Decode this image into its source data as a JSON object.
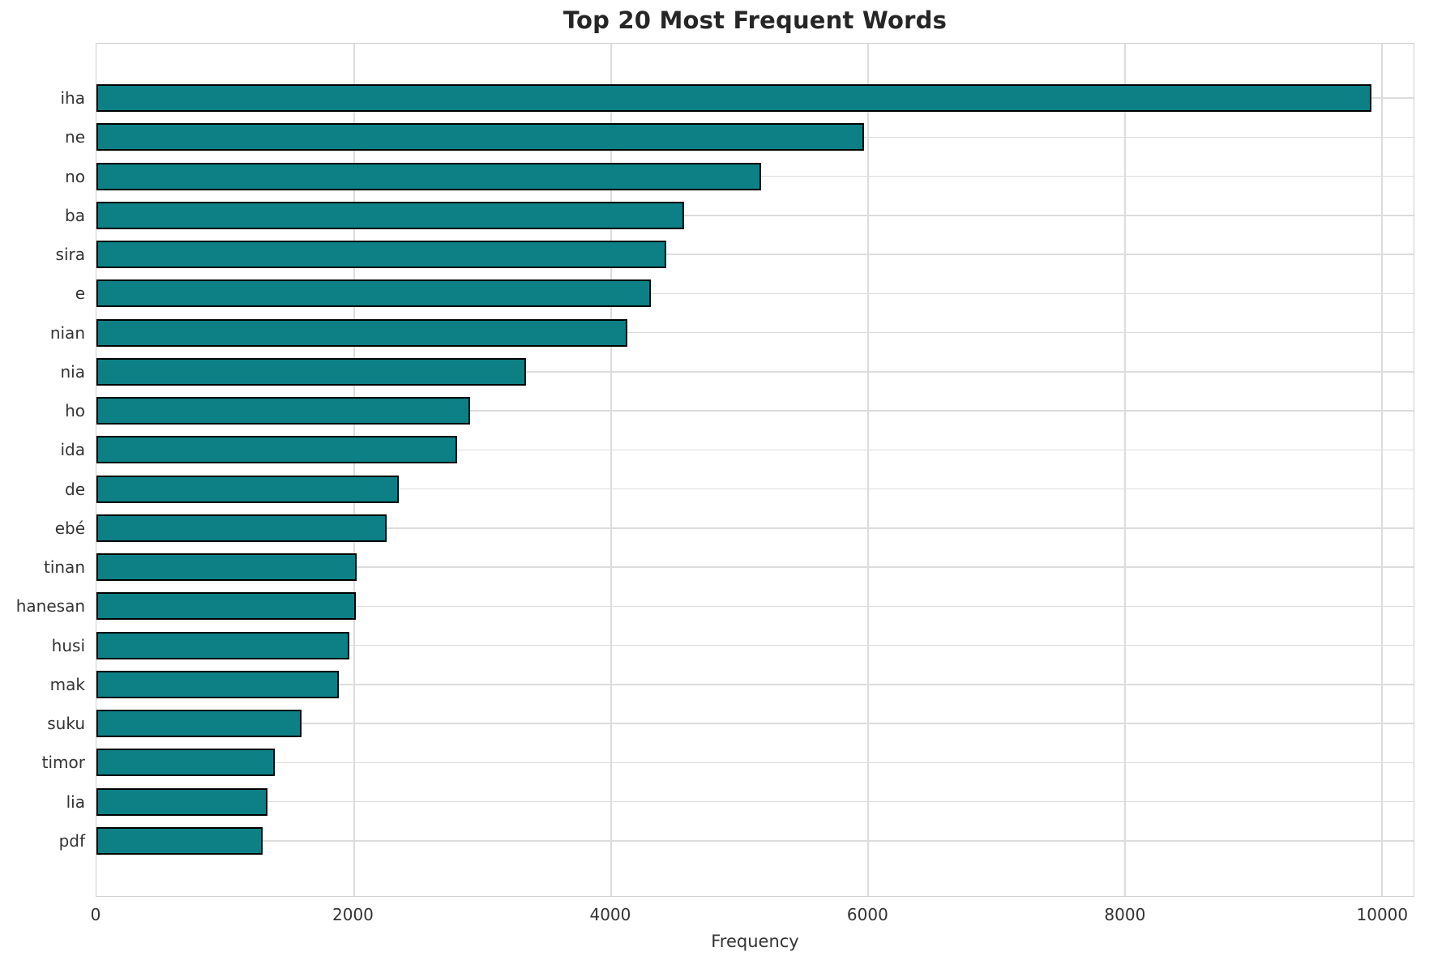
{
  "chart_data": {
    "type": "bar",
    "orientation": "horizontal",
    "title": "Top 20 Most Frequent Words",
    "xlabel": "Frequency",
    "ylabel": "",
    "categories": [
      "iha",
      "ne",
      "no",
      "ba",
      "sira",
      "e",
      "nian",
      "nia",
      "ho",
      "ida",
      "de",
      "ebé",
      "tinan",
      "hanesan",
      "husi",
      "mak",
      "suku",
      "timor",
      "lia",
      "pdf"
    ],
    "values": [
      9925,
      5975,
      5170,
      4575,
      4435,
      4315,
      4130,
      3345,
      2910,
      2810,
      2355,
      2260,
      2025,
      2020,
      1970,
      1885,
      1595,
      1390,
      1330,
      1295
    ],
    "xlim": [
      0,
      10250
    ],
    "xticks": [
      0,
      2000,
      4000,
      6000,
      8000,
      10000
    ],
    "grid": true,
    "legend": false,
    "bar_color": "#0d8085",
    "bar_edge_color": "#000000",
    "grid_color": "#dcdcdc",
    "frame_color": "#cfcfcf",
    "title_color": "#262626",
    "tick_color": "#333333"
  }
}
